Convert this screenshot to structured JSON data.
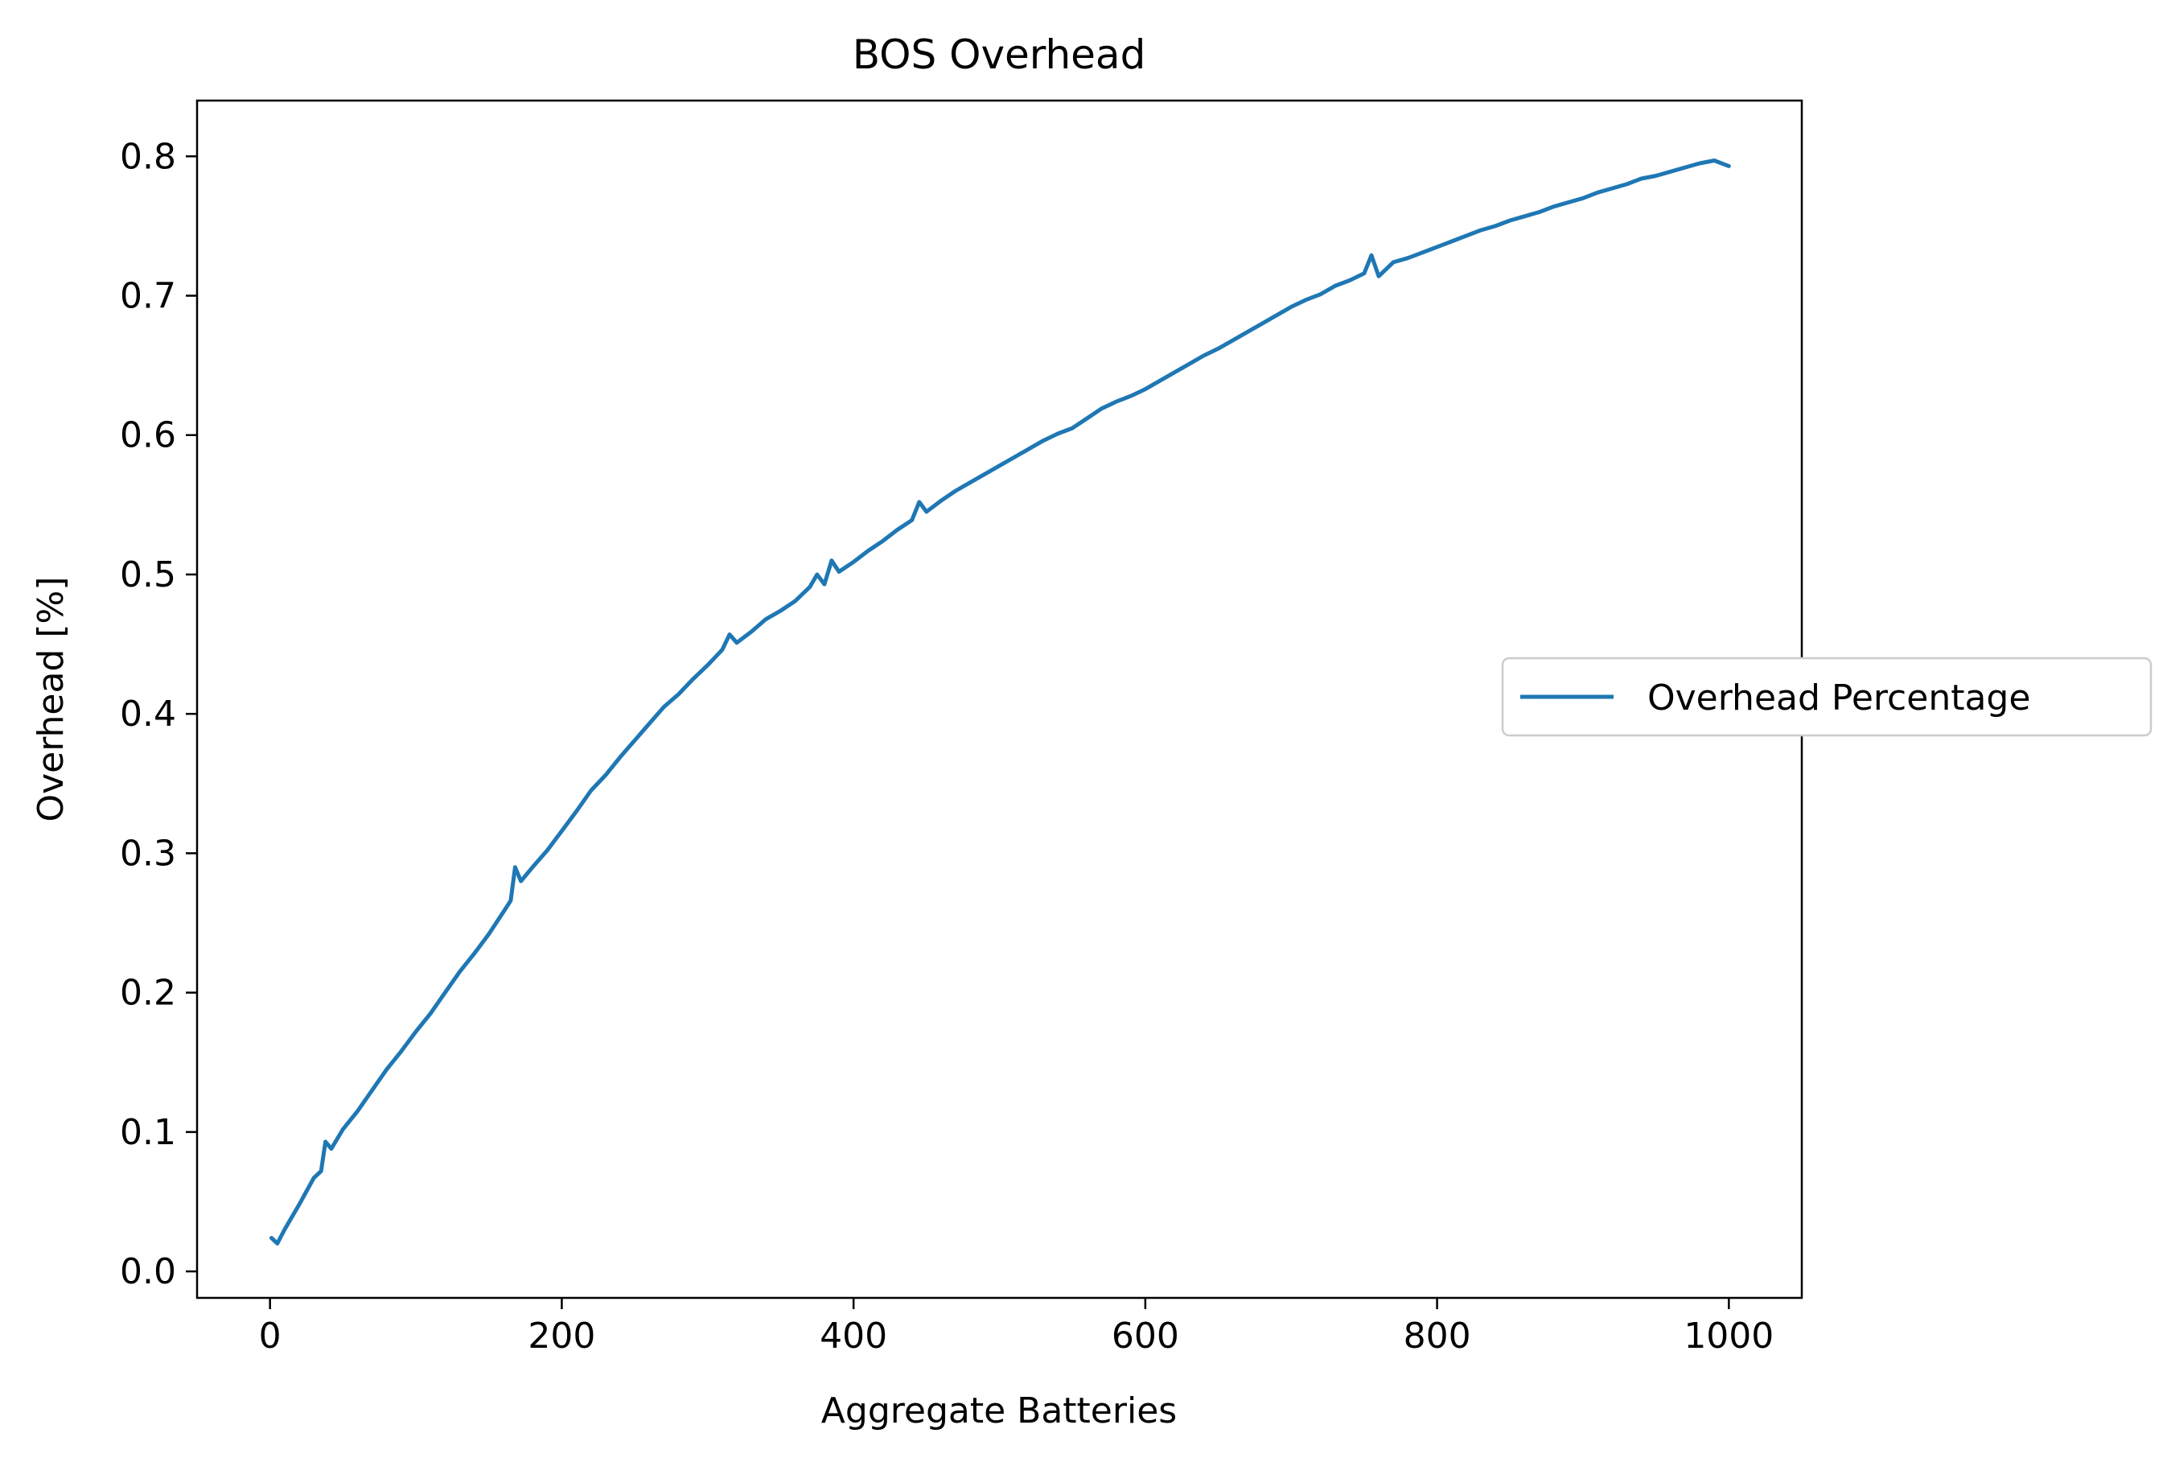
{
  "chart_data": {
    "type": "line",
    "title": "BOS Overhead",
    "xlabel": "Aggregate Batteries",
    "ylabel": "Overhead [%]",
    "xlim": [
      -50,
      1050
    ],
    "ylim": [
      -0.019,
      0.84
    ],
    "xticks": [
      0,
      200,
      400,
      600,
      800,
      1000
    ],
    "xtick_labels": [
      "0",
      "200",
      "400",
      "600",
      "800",
      "1000"
    ],
    "yticks": [
      0.0,
      0.1,
      0.2,
      0.3,
      0.4,
      0.5,
      0.6,
      0.7,
      0.8
    ],
    "ytick_labels": [
      "0.0",
      "0.1",
      "0.2",
      "0.3",
      "0.4",
      "0.5",
      "0.6",
      "0.7",
      "0.8"
    ],
    "grid": false,
    "legend_position": "center-right, outside plot",
    "series": [
      {
        "name": "Overhead Percentage",
        "color": "#1f77b4",
        "x": [
          1,
          5,
          10,
          20,
          30,
          35,
          38,
          42,
          50,
          60,
          70,
          80,
          90,
          100,
          110,
          120,
          130,
          140,
          150,
          160,
          165,
          168,
          172,
          180,
          190,
          200,
          210,
          220,
          230,
          240,
          250,
          260,
          270,
          280,
          290,
          300,
          310,
          315,
          320,
          330,
          340,
          350,
          360,
          370,
          375,
          380,
          385,
          390,
          400,
          410,
          420,
          430,
          440,
          445,
          450,
          460,
          470,
          480,
          490,
          500,
          510,
          520,
          530,
          540,
          550,
          560,
          570,
          580,
          590,
          600,
          610,
          620,
          630,
          640,
          650,
          660,
          670,
          680,
          690,
          700,
          710,
          720,
          730,
          740,
          750,
          755,
          760,
          770,
          780,
          790,
          800,
          810,
          820,
          830,
          840,
          850,
          860,
          870,
          880,
          890,
          900,
          910,
          920,
          930,
          940,
          950,
          960,
          970,
          980,
          990,
          1000
        ],
        "y": [
          0.024,
          0.02,
          0.03,
          0.048,
          0.067,
          0.072,
          0.093,
          0.088,
          0.102,
          0.115,
          0.13,
          0.145,
          0.158,
          0.172,
          0.185,
          0.2,
          0.215,
          0.228,
          0.242,
          0.258,
          0.266,
          0.29,
          0.28,
          0.29,
          0.302,
          0.316,
          0.33,
          0.345,
          0.356,
          0.369,
          0.381,
          0.393,
          0.405,
          0.414,
          0.425,
          0.435,
          0.446,
          0.457,
          0.451,
          0.459,
          0.468,
          0.474,
          0.481,
          0.491,
          0.5,
          0.493,
          0.51,
          0.502,
          0.509,
          0.517,
          0.524,
          0.532,
          0.539,
          0.552,
          0.545,
          0.553,
          0.56,
          0.566,
          0.572,
          0.578,
          0.584,
          0.59,
          0.596,
          0.601,
          0.605,
          0.612,
          0.619,
          0.624,
          0.628,
          0.633,
          0.639,
          0.645,
          0.651,
          0.657,
          0.662,
          0.668,
          0.674,
          0.68,
          0.686,
          0.692,
          0.697,
          0.701,
          0.707,
          0.711,
          0.716,
          0.729,
          0.714,
          0.724,
          0.727,
          0.731,
          0.735,
          0.739,
          0.743,
          0.747,
          0.75,
          0.754,
          0.757,
          0.76,
          0.764,
          0.767,
          0.77,
          0.774,
          0.777,
          0.78,
          0.784,
          0.786,
          0.789,
          0.792,
          0.795,
          0.797,
          0.793
        ]
      }
    ]
  }
}
